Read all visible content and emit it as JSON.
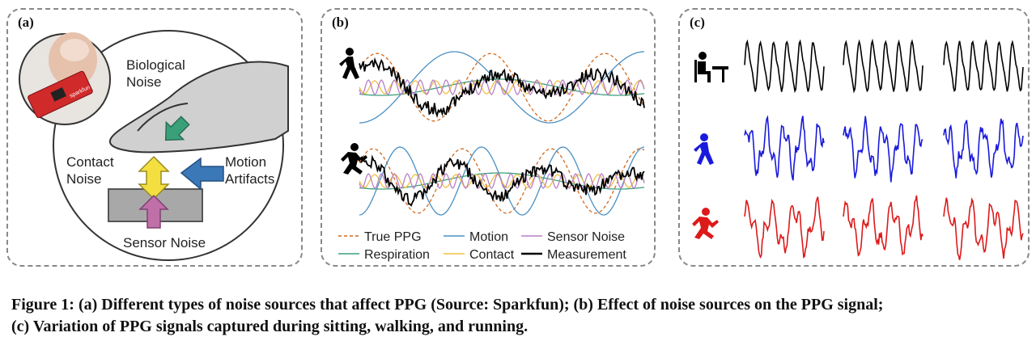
{
  "panel_a": {
    "label": "(a)",
    "biological_noise": [
      "Biological",
      "Noise"
    ],
    "contact_noise": [
      "Contact",
      "Noise"
    ],
    "motion_artifacts": [
      "Motion",
      "Artifacts"
    ],
    "sensor_noise": "Sensor Noise",
    "sensor_brand": "sparkfun"
  },
  "panel_b": {
    "label": "(b)",
    "legend": [
      {
        "name": "True PPG",
        "color": "#d2691e",
        "dash": true
      },
      {
        "name": "Motion",
        "color": "#4a90c2",
        "dash": false
      },
      {
        "name": "Sensor Noise",
        "color": "#b87fc8",
        "dash": false
      },
      {
        "name": "Respiration",
        "color": "#3aa07a",
        "dash": false
      },
      {
        "name": "Contact",
        "color": "#f0c040",
        "dash": false
      },
      {
        "name": "Measurement",
        "color": "#000000",
        "dash": false,
        "bold": true
      }
    ]
  },
  "panel_c": {
    "label": "(c)",
    "rows": [
      {
        "activity": "sitting",
        "color": "#000000"
      },
      {
        "activity": "walking",
        "color": "#1a1adc"
      },
      {
        "activity": "running",
        "color": "#dd1a1a"
      }
    ]
  },
  "caption": {
    "line1": "Figure 1: (a) Different types of noise sources that affect PPG (Source: Sparkfun); (b) Effect of noise sources on the PPG signal;",
    "line2": "(c) Variation of PPG signals captured during sitting, walking, and running."
  }
}
